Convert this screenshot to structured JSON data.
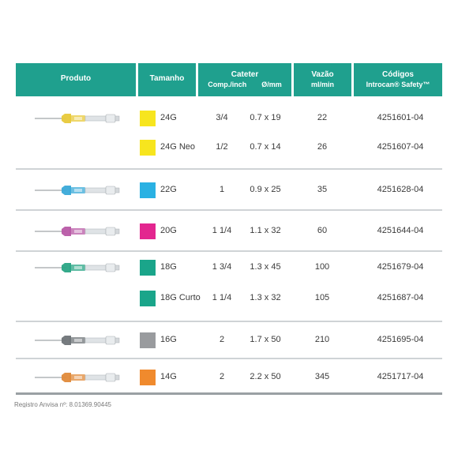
{
  "header": {
    "produto": "Produto",
    "tamanho": "Tamanho",
    "cateter": "Cateter",
    "comp": "Comp./inch",
    "diam": "Ø/mm",
    "vazao": "Vazão",
    "vazao_unit": "ml/min",
    "codigos": "Códigos",
    "codigos_sub": "Introcan® Safety™"
  },
  "rows": [
    {
      "size": "24G",
      "comp": "3/4",
      "diam": "0.7 x 19",
      "flow": "22",
      "code": "4251601-04",
      "color": "#f7e51e",
      "hub": "#e8c93a"
    },
    {
      "size": "24G Neo",
      "comp": "1/2",
      "diam": "0.7 x 14",
      "flow": "26",
      "code": "4251607-04",
      "color": "#f7e51e",
      "hub": "#e8c93a"
    },
    {
      "size": "22G",
      "comp": "1",
      "diam": "0.9 x 25",
      "flow": "35",
      "code": "4251628-04",
      "color": "#2ab1e3",
      "hub": "#3aa9d8"
    },
    {
      "size": "20G",
      "comp": "1 1/4",
      "diam": "1.1 x 32",
      "flow": "60",
      "code": "4251644-04",
      "color": "#e3268f",
      "hub": "#b85aa6"
    },
    {
      "size": "18G",
      "comp": "1 3/4",
      "diam": "1.3 x 45",
      "flow": "100",
      "code": "4251679-04",
      "color": "#1aa58a",
      "hub": "#2aa585"
    },
    {
      "size": "18G Curto",
      "comp": "1 1/4",
      "diam": "1.3 x 32",
      "flow": "105",
      "code": "4251687-04",
      "color": "#1aa58a",
      "hub": "#2aa585"
    },
    {
      "size": "16G",
      "comp": "2",
      "diam": "1.7 x 50",
      "flow": "210",
      "code": "4251695-04",
      "color": "#999b9e",
      "hub": "#6f7478"
    },
    {
      "size": "14G",
      "comp": "2",
      "diam": "2.2 x 50",
      "flow": "345",
      "code": "4251717-04",
      "color": "#f08a2d",
      "hub": "#e08a3a"
    }
  ],
  "footer": "Registro Anvisa nº: 8.01369.90445"
}
